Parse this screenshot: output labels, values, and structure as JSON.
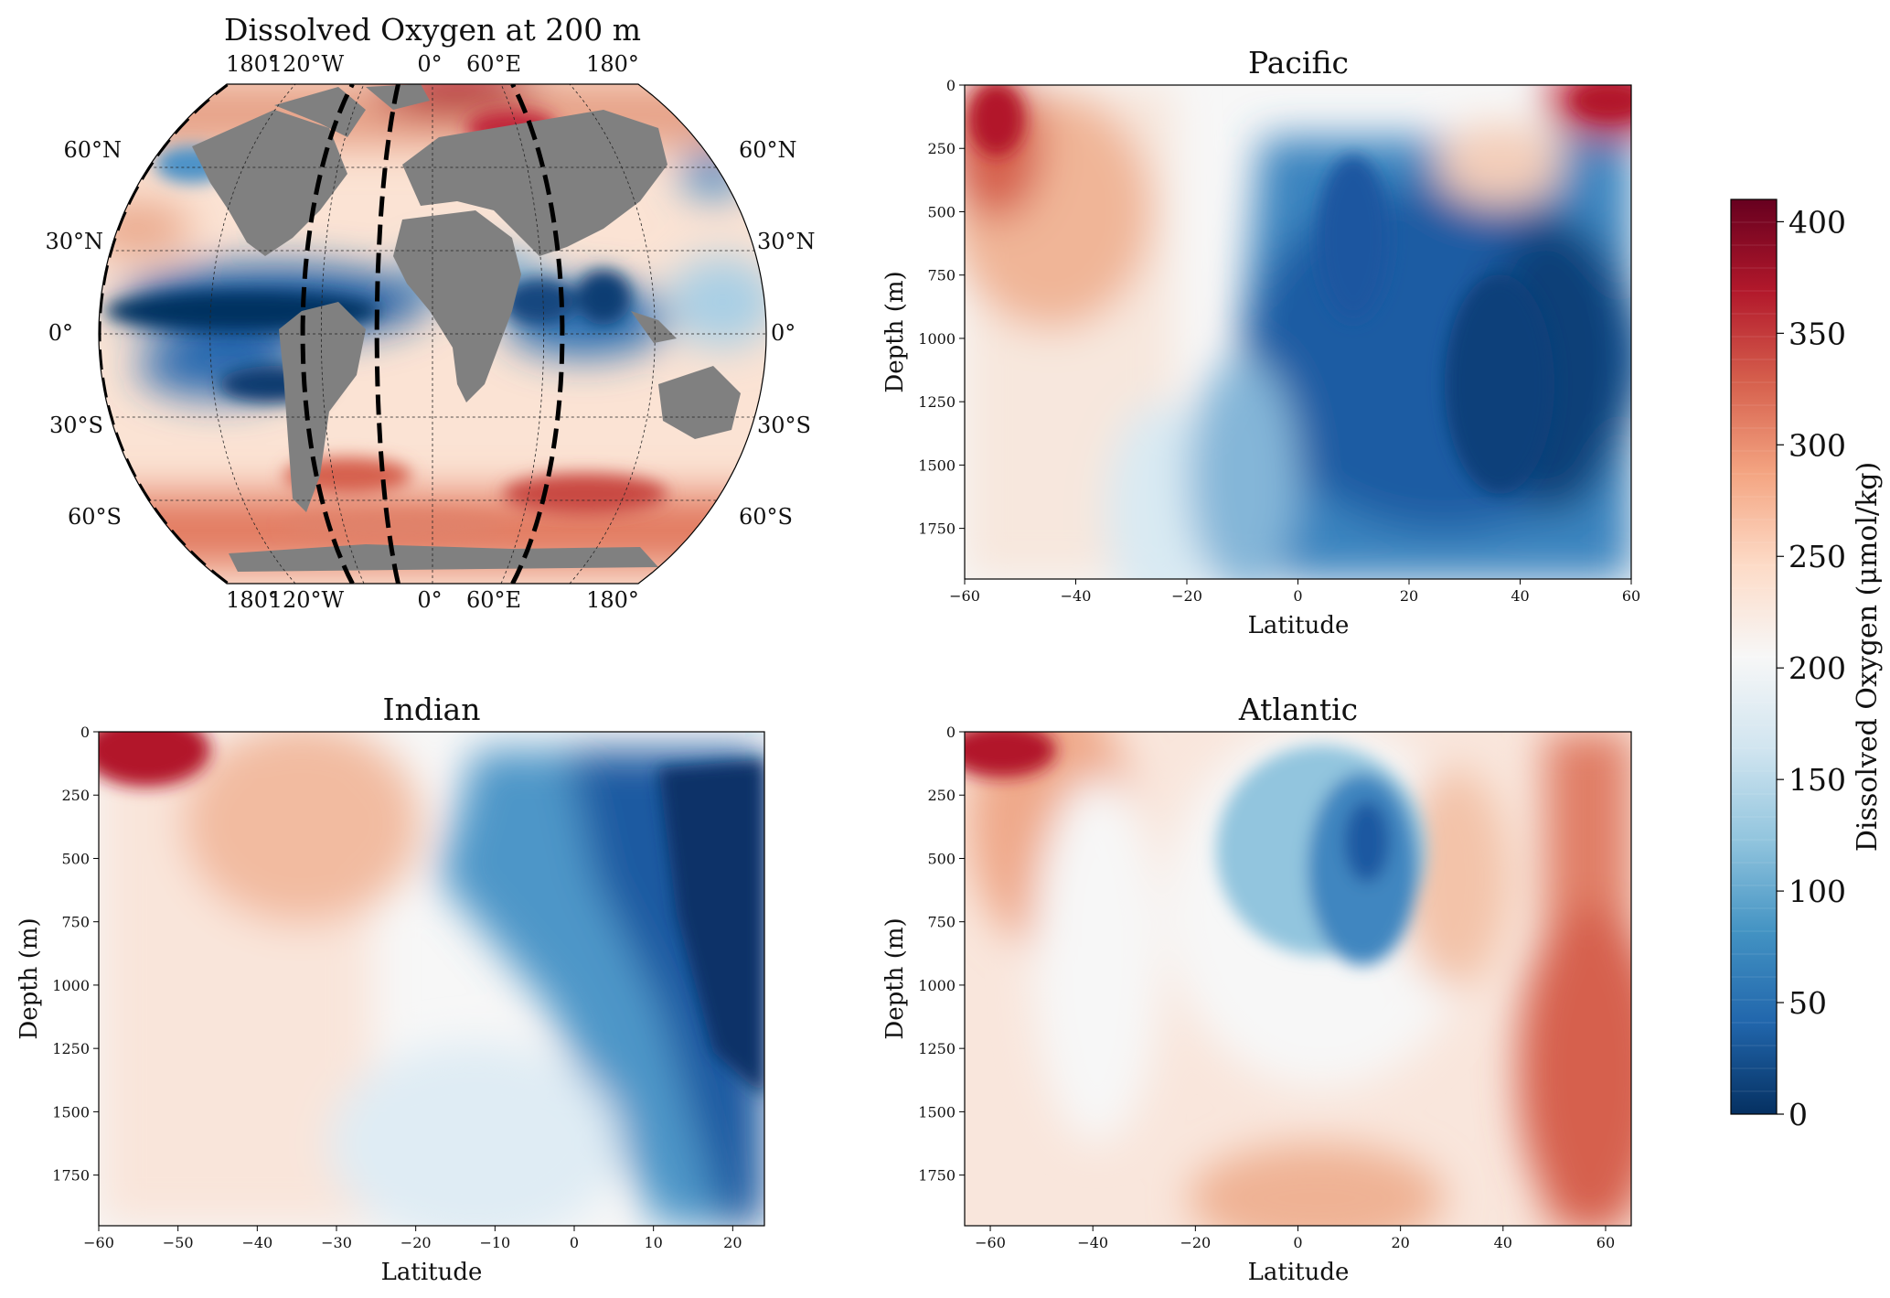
{
  "colors": {
    "colormap": [
      "#053061",
      "#2166ac",
      "#4393c3",
      "#92c5de",
      "#d1e5f0",
      "#f7f7f7",
      "#fddbc7",
      "#f4a582",
      "#d6604d",
      "#b2182b",
      "#67001f"
    ],
    "land": "#808080",
    "background": "#ffffff"
  },
  "colorbar": {
    "label": "Dissolved Oxygen (μmol/kg)",
    "ticks": [
      "0",
      "50",
      "100",
      "150",
      "200",
      "250",
      "300",
      "350",
      "400"
    ],
    "range": [
      0,
      410
    ]
  },
  "chart_data": [
    {
      "id": "map",
      "type": "heatmap",
      "title": "Dissolved Oxygen at 200 m",
      "projection": "robinson",
      "lon_labels_top": [
        "180°",
        "120°W",
        "0°",
        "60°E",
        "180°"
      ],
      "lon_labels_bottom": [
        "180°",
        "120°W",
        "0°",
        "60°E",
        "180°"
      ],
      "lat_labels_left": [
        "60°N",
        "30°N",
        "0°",
        "30°S",
        "60°S"
      ],
      "lat_labels_right": [
        "60°N",
        "30°N",
        "0°",
        "30°S",
        "60°S"
      ],
      "section_meridians_lon": [
        -70,
        -30,
        70
      ],
      "value_range": [
        0,
        400
      ]
    },
    {
      "id": "pacific",
      "type": "heatmap",
      "title": "Pacific",
      "xlabel": "Latitude",
      "ylabel": "Depth (m)",
      "xlim": [
        -60,
        60
      ],
      "ylim": [
        1950,
        0
      ],
      "xticks": [
        "−60",
        "−40",
        "−20",
        "0",
        "20",
        "40",
        "60"
      ],
      "yticks": [
        "0",
        "250",
        "500",
        "750",
        "1000",
        "1250",
        "1500",
        "1750"
      ]
    },
    {
      "id": "indian",
      "type": "heatmap",
      "title": "Indian",
      "xlabel": "Latitude",
      "ylabel": "Depth (m)",
      "xlim": [
        -60,
        24
      ],
      "ylim": [
        1950,
        0
      ],
      "xticks": [
        "−60",
        "−50",
        "−40",
        "−30",
        "−20",
        "−10",
        "0",
        "10",
        "20"
      ],
      "yticks": [
        "0",
        "250",
        "500",
        "750",
        "1000",
        "1250",
        "1500",
        "1750"
      ]
    },
    {
      "id": "atlantic",
      "type": "heatmap",
      "title": "Atlantic",
      "xlabel": "Latitude",
      "ylabel": "Depth (m)",
      "xlim": [
        -65,
        65
      ],
      "ylim": [
        1950,
        0
      ],
      "xticks": [
        "−60",
        "−40",
        "−20",
        "0",
        "20",
        "40",
        "60"
      ],
      "yticks": [
        "0",
        "250",
        "500",
        "750",
        "1000",
        "1250",
        "1500",
        "1750"
      ]
    }
  ]
}
